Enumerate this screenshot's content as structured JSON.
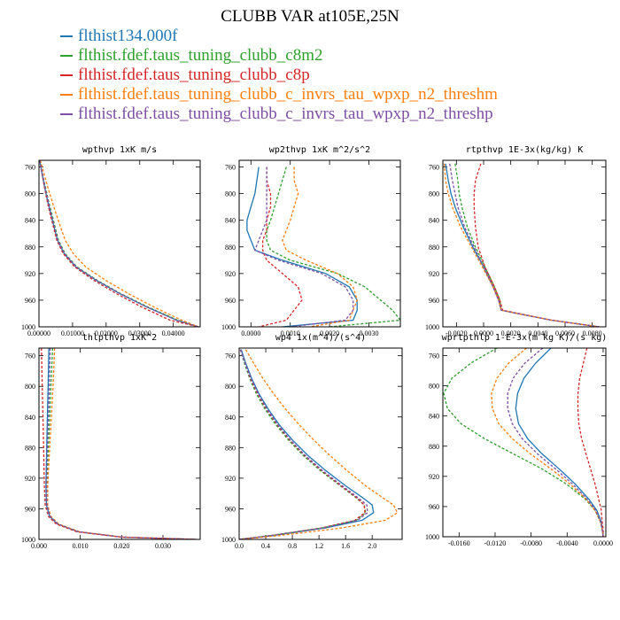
{
  "title": "CLUBB VAR at105E,25N",
  "colors": {
    "blue": "#1f77b4",
    "green": "#2ca02c",
    "red": "#d62728",
    "orange": "#ff7f0e",
    "purple": "#7e4fa5"
  },
  "legend": [
    {
      "label": "flthist134.000f",
      "color": "#1f77b4"
    },
    {
      "label": "flthist.fdef.taus_tuning_clubb_c8m2",
      "color": "#2ca02c"
    },
    {
      "label": "flthist.fdef.taus_tuning_clubb_c8p",
      "color": "#d62728"
    },
    {
      "label": "flthist.fdef.taus_tuning_clubb_c_invrs_tau_wpxp_n2_threshm",
      "color": "#ff7f0e"
    },
    {
      "label": "flthist.fdef.taus_tuning_clubb_c_invrs_tau_wpxp_n2_threshp",
      "color": "#7e4fa5"
    }
  ],
  "chart_data": [
    {
      "type": "line",
      "title": "wpthvp  1xK m/s",
      "xlim": [
        0,
        0.048
      ],
      "ylim": [
        750,
        1000
      ],
      "xticks": [
        0,
        0.01,
        0.02,
        0.03,
        0.04
      ],
      "xticklabels": [
        "0.00000",
        "0.01000",
        "0.02000",
        "0.03000",
        "0.04000"
      ],
      "yticks": [
        760,
        800,
        840,
        880,
        920,
        960,
        1000
      ],
      "y": [
        750,
        770,
        790,
        810,
        830,
        850,
        870,
        890,
        910,
        930,
        950,
        970,
        990,
        1000
      ],
      "series": [
        {
          "name": "flthist134.000f",
          "color": "#1f77b4",
          "dashed": false,
          "x": [
            0.0002,
            0.0009,
            0.0017,
            0.0025,
            0.0035,
            0.0045,
            0.0055,
            0.0075,
            0.011,
            0.017,
            0.024,
            0.032,
            0.041,
            0.0475
          ]
        },
        {
          "name": "flthist.fdef.taus_tuning_clubb_c8m2",
          "color": "#2ca02c",
          "dashed": true,
          "x": [
            0.0002,
            0.001,
            0.0019,
            0.0028,
            0.0038,
            0.0048,
            0.0058,
            0.0078,
            0.0113,
            0.0173,
            0.0243,
            0.0323,
            0.0413,
            0.0475
          ]
        },
        {
          "name": "flthist.fdef.taus_tuning_clubb_c8p",
          "color": "#d62728",
          "dashed": true,
          "x": [
            0.0002,
            0.0009,
            0.0016,
            0.0024,
            0.0033,
            0.0043,
            0.0053,
            0.0072,
            0.0106,
            0.0163,
            0.023,
            0.0305,
            0.039,
            0.0475
          ]
        },
        {
          "name": "flthist.fdef.taus_tuning_clubb_c_invrs_tau_wpxp_n2_threshm",
          "color": "#ff7f0e",
          "dashed": true,
          "x": [
            0.0004,
            0.0015,
            0.0026,
            0.0038,
            0.0051,
            0.0064,
            0.0078,
            0.0102,
            0.0139,
            0.0198,
            0.0266,
            0.0341,
            0.0425,
            0.0475
          ]
        },
        {
          "name": "flthist.fdef.taus_tuning_clubb_c_invrs_tau_wpxp_n2_threshp",
          "color": "#7e4fa5",
          "dashed": true,
          "x": [
            0.0002,
            0.001,
            0.0018,
            0.0027,
            0.0036,
            0.0046,
            0.0056,
            0.0076,
            0.0111,
            0.0171,
            0.0241,
            0.032,
            0.0409,
            0.0475
          ]
        }
      ]
    },
    {
      "type": "line",
      "title": "wp2thvp  1xK m^2/s^2",
      "xlim": [
        -0.0003,
        0.0038
      ],
      "ylim": [
        750,
        1000
      ],
      "xticks": [
        0,
        0.001,
        0.002,
        0.003
      ],
      "xticklabels": [
        "0.0000",
        "0.0010",
        "0.0020",
        "0.0030"
      ],
      "yticks": [
        760,
        800,
        840,
        880,
        920,
        960,
        1000
      ],
      "y": [
        760,
        780,
        800,
        820,
        840,
        855,
        870,
        885,
        900,
        920,
        940,
        960,
        975,
        990,
        1000
      ],
      "series": [
        {
          "name": "flthist134.000f",
          "color": "#1f77b4",
          "dashed": false,
          "x": [
            0.0002,
            0.00015,
            0.0001,
            0.0,
            -0.0001,
            -0.0001,
            0.0,
            0.0001,
            0.0008,
            0.0019,
            0.0025,
            0.0027,
            0.0027,
            0.0026,
            0.0008
          ]
        },
        {
          "name": "flthist.fdef.taus_tuning_clubb_c8m2",
          "color": "#2ca02c",
          "dashed": true,
          "x": [
            0.0009,
            0.0008,
            0.0007,
            0.0006,
            0.0005,
            0.0004,
            0.0004,
            0.0005,
            0.001,
            0.0022,
            0.0029,
            0.0033,
            0.0036,
            0.0038,
            0.002
          ]
        },
        {
          "name": "flthist.fdef.taus_tuning_clubb_c8p",
          "color": "#d62728",
          "dashed": true,
          "x": [
            0.0004,
            0.0004,
            0.0005,
            0.0005,
            0.0004,
            0.0004,
            0.0003,
            0.0003,
            0.0004,
            0.0008,
            0.0012,
            0.0013,
            0.0011,
            0.0009,
            0.0002
          ]
        },
        {
          "name": "flthist.fdef.taus_tuning_clubb_c_invrs_tau_wpxp_n2_threshm",
          "color": "#ff7f0e",
          "dashed": true,
          "x": [
            0.0011,
            0.0011,
            0.0012,
            0.0011,
            0.001,
            0.0009,
            0.0008,
            0.0009,
            0.0014,
            0.0022,
            0.0026,
            0.0027,
            0.0026,
            0.0025,
            0.0015
          ]
        },
        {
          "name": "flthist.fdef.taus_tuning_clubb_c_invrs_tau_wpxp_n2_threshp",
          "color": "#7e4fa5",
          "dashed": true,
          "x": [
            0.0004,
            0.0004,
            0.0004,
            0.0004,
            0.0004,
            0.0003,
            0.0002,
            0.0001,
            0.0007,
            0.0018,
            0.0024,
            0.0026,
            0.0026,
            0.0024,
            0.001
          ]
        }
      ]
    },
    {
      "type": "line",
      "title": "rtpthvp  1E-3x(kg/kg) K",
      "xlim": [
        -0.003,
        0.009
      ],
      "ylim": [
        750,
        1000
      ],
      "xticks": [
        -0.002,
        0,
        0.002,
        0.004,
        0.006,
        0.008
      ],
      "xticklabels": [
        "-0.0020",
        "0.0000",
        "0.0020",
        "0.0040",
        "0.0060",
        "0.0080"
      ],
      "yticks": [
        760,
        800,
        840,
        880,
        920,
        960,
        1000
      ],
      "y": [
        755,
        780,
        800,
        820,
        850,
        880,
        910,
        940,
        960,
        975,
        980,
        990,
        1000
      ],
      "series": [
        {
          "name": "flthist134.000f",
          "color": "#1f77b4",
          "dashed": false,
          "x": [
            -0.0028,
            -0.0026,
            -0.0024,
            -0.0021,
            -0.0015,
            -0.0008,
            0.0,
            0.0007,
            0.0011,
            0.0013,
            0.0025,
            0.005,
            0.0085
          ]
        },
        {
          "name": "flthist.fdef.taus_tuning_clubb_c8m2",
          "color": "#2ca02c",
          "dashed": true,
          "x": [
            -0.0021,
            -0.0019,
            -0.0018,
            -0.0016,
            -0.0012,
            -0.0006,
            0.0001,
            0.0008,
            0.0012,
            0.0013,
            0.0025,
            0.005,
            0.0085
          ]
        },
        {
          "name": "flthist.fdef.taus_tuning_clubb_c8p",
          "color": "#d62728",
          "dashed": true,
          "x": [
            -0.0002,
            -0.0006,
            -0.0007,
            -0.0007,
            -0.0006,
            -0.0004,
            0.0001,
            0.0008,
            0.0012,
            0.0014,
            0.0026,
            0.005,
            0.0085
          ]
        },
        {
          "name": "flthist.fdef.taus_tuning_clubb_c_invrs_tau_wpxp_n2_threshm",
          "color": "#ff7f0e",
          "dashed": true,
          "x": [
            -0.0029,
            -0.0028,
            -0.0026,
            -0.0023,
            -0.0017,
            -0.0009,
            -0.0001,
            0.0007,
            0.0011,
            0.0013,
            0.0025,
            0.005,
            0.0085
          ]
        },
        {
          "name": "flthist.fdef.taus_tuning_clubb_c_invrs_tau_wpxp_n2_threshp",
          "color": "#7e4fa5",
          "dashed": true,
          "x": [
            -0.0025,
            -0.0023,
            -0.0021,
            -0.0019,
            -0.0014,
            -0.0007,
            0.0,
            0.0007,
            0.0011,
            0.0013,
            0.0025,
            0.005,
            0.0085
          ]
        }
      ]
    },
    {
      "type": "line",
      "title": "thlpthvp  1xK^2",
      "xlim": [
        0,
        0.039
      ],
      "ylim": [
        750,
        1000
      ],
      "xticks": [
        0,
        0.01,
        0.02,
        0.03
      ],
      "xticklabels": [
        "0.000",
        "0.010",
        "0.020",
        "0.030"
      ],
      "yticks": [
        760,
        800,
        840,
        880,
        920,
        960,
        1000
      ],
      "y": [
        750,
        800,
        850,
        900,
        930,
        955,
        970,
        980,
        990,
        997,
        1000
      ],
      "series": [
        {
          "name": "flthist134.000f",
          "color": "#1f77b4",
          "dashed": false,
          "x": [
            0.0024,
            0.0022,
            0.002,
            0.0018,
            0.0017,
            0.0018,
            0.0026,
            0.0045,
            0.0095,
            0.02,
            0.038
          ]
        },
        {
          "name": "flthist.fdef.taus_tuning_clubb_c8m2",
          "color": "#2ca02c",
          "dashed": true,
          "x": [
            0.0033,
            0.0029,
            0.0025,
            0.0021,
            0.0019,
            0.002,
            0.0028,
            0.0047,
            0.0097,
            0.0202,
            0.038
          ]
        },
        {
          "name": "flthist.fdef.taus_tuning_clubb_c8p",
          "color": "#d62728",
          "dashed": true,
          "x": [
            0.0006,
            0.0008,
            0.001,
            0.0012,
            0.0013,
            0.0015,
            0.0023,
            0.0042,
            0.0092,
            0.0197,
            0.038
          ]
        },
        {
          "name": "flthist.fdef.taus_tuning_clubb_c_invrs_tau_wpxp_n2_threshm",
          "color": "#ff7f0e",
          "dashed": true,
          "x": [
            0.0038,
            0.0034,
            0.0029,
            0.0024,
            0.0021,
            0.0021,
            0.0029,
            0.0048,
            0.0098,
            0.0203,
            0.038
          ]
        },
        {
          "name": "flthist.fdef.taus_tuning_clubb_c_invrs_tau_wpxp_n2_threshp",
          "color": "#7e4fa5",
          "dashed": true,
          "x": [
            0.0027,
            0.0025,
            0.0022,
            0.0019,
            0.0018,
            0.0019,
            0.0027,
            0.0046,
            0.0096,
            0.0201,
            0.038
          ]
        }
      ]
    },
    {
      "type": "line",
      "title": "wp4  1x(m^4)/(s^4)",
      "xlim": [
        0,
        2.45
      ],
      "ylim": [
        750,
        1000
      ],
      "xticks": [
        0,
        0.4,
        0.8,
        1.2,
        1.6,
        2.0
      ],
      "xticklabels": [
        "0.0",
        "0.4",
        "0.8",
        "1.2",
        "1.6",
        "2.0"
      ],
      "yticks": [
        760,
        800,
        840,
        880,
        920,
        960,
        1000
      ],
      "y": [
        752,
        770,
        790,
        810,
        830,
        850,
        870,
        890,
        910,
        930,
        945,
        955,
        965,
        975,
        985,
        995,
        1000
      ],
      "series": [
        {
          "name": "flthist134.000f",
          "color": "#1f77b4",
          "dashed": false,
          "x": [
            0.03,
            0.1,
            0.19,
            0.3,
            0.44,
            0.6,
            0.8,
            1.03,
            1.3,
            1.6,
            1.85,
            2.0,
            2.02,
            1.85,
            1.3,
            0.5,
            0.0
          ]
        },
        {
          "name": "flthist.fdef.taus_tuning_clubb_c8m2",
          "color": "#2ca02c",
          "dashed": true,
          "x": [
            0.02,
            0.08,
            0.16,
            0.26,
            0.39,
            0.55,
            0.74,
            0.96,
            1.22,
            1.52,
            1.75,
            1.88,
            1.9,
            1.76,
            1.25,
            0.48,
            0.0
          ]
        },
        {
          "name": "flthist.fdef.taus_tuning_clubb_c8p",
          "color": "#d62728",
          "dashed": true,
          "x": [
            0.02,
            0.09,
            0.17,
            0.28,
            0.41,
            0.57,
            0.76,
            0.98,
            1.24,
            1.53,
            1.76,
            1.88,
            1.89,
            1.74,
            1.24,
            0.47,
            0.0
          ]
        },
        {
          "name": "flthist.fdef.taus_tuning_clubb_c_invrs_tau_wpxp_n2_threshm",
          "color": "#ff7f0e",
          "dashed": true,
          "x": [
            0.1,
            0.22,
            0.36,
            0.52,
            0.7,
            0.9,
            1.12,
            1.36,
            1.62,
            1.9,
            2.15,
            2.32,
            2.38,
            2.2,
            1.55,
            0.6,
            0.0
          ]
        },
        {
          "name": "flthist.fdef.taus_tuning_clubb_c_invrs_tau_wpxp_n2_threshp",
          "color": "#7e4fa5",
          "dashed": true,
          "x": [
            0.02,
            0.09,
            0.18,
            0.29,
            0.42,
            0.58,
            0.77,
            0.99,
            1.25,
            1.55,
            1.78,
            1.92,
            1.93,
            1.78,
            1.27,
            0.48,
            0.0
          ]
        }
      ]
    },
    {
      "type": "line",
      "title": "wprtpthlp  1-E-3x(m kg K)/(s kg)",
      "xlim": [
        -0.0178,
        0.0003
      ],
      "ylim": [
        750,
        1000
      ],
      "xticks": [
        -0.016,
        -0.012,
        -0.008,
        -0.004,
        0
      ],
      "xticklabels": [
        "-0.0160",
        "-0.0120",
        "-0.0080",
        "-0.0040",
        "0.0000"
      ],
      "yticks": [
        760,
        800,
        840,
        880,
        920,
        960,
        1000
      ],
      "y": [
        750,
        770,
        790,
        810,
        830,
        850,
        870,
        890,
        910,
        930,
        950,
        965,
        980,
        990,
        1000
      ],
      "series": [
        {
          "name": "flthist134.000f",
          "color": "#1f77b4",
          "dashed": false,
          "x": [
            -0.0058,
            -0.0075,
            -0.0088,
            -0.0095,
            -0.0097,
            -0.0094,
            -0.0084,
            -0.0068,
            -0.0049,
            -0.0031,
            -0.0016,
            -0.0007,
            -0.0002,
            -0.0001,
            0.0
          ]
        },
        {
          "name": "flthist.fdef.taus_tuning_clubb_c8m2",
          "color": "#2ca02c",
          "dashed": true,
          "x": [
            -0.0118,
            -0.0147,
            -0.0168,
            -0.0177,
            -0.0173,
            -0.0158,
            -0.0132,
            -0.01,
            -0.0068,
            -0.0041,
            -0.002,
            -0.0009,
            -0.0003,
            -0.0001,
            0.0
          ]
        },
        {
          "name": "flthist.fdef.taus_tuning_clubb_c8p",
          "color": "#d62728",
          "dashed": true,
          "x": [
            -0.0018,
            -0.0022,
            -0.0026,
            -0.0028,
            -0.0028,
            -0.0027,
            -0.0024,
            -0.0019,
            -0.0014,
            -0.0009,
            -0.0005,
            -0.0002,
            -0.0001,
            0.0,
            0.0
          ]
        },
        {
          "name": "flthist.fdef.taus_tuning_clubb_c_invrs_tau_wpxp_n2_threshm",
          "color": "#ff7f0e",
          "dashed": true,
          "x": [
            -0.0085,
            -0.0105,
            -0.0118,
            -0.0124,
            -0.0123,
            -0.0116,
            -0.0101,
            -0.0081,
            -0.0058,
            -0.0037,
            -0.0019,
            -0.0009,
            -0.0003,
            -0.0001,
            0.0
          ]
        },
        {
          "name": "flthist.fdef.taus_tuning_clubb_c_invrs_tau_wpxp_n2_threshp",
          "color": "#7e4fa5",
          "dashed": true,
          "x": [
            -0.0067,
            -0.0087,
            -0.01,
            -0.0106,
            -0.0106,
            -0.0101,
            -0.009,
            -0.0073,
            -0.0053,
            -0.0034,
            -0.0018,
            -0.0008,
            -0.0003,
            -0.0001,
            0.0
          ]
        }
      ]
    }
  ]
}
